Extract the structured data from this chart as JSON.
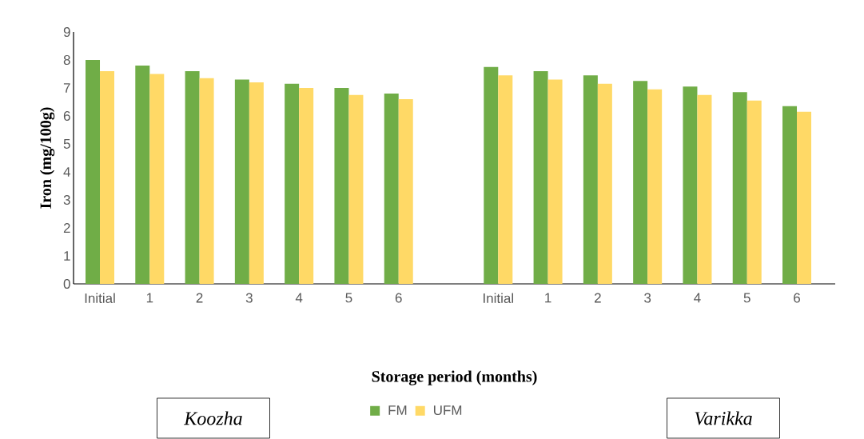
{
  "chart_data": {
    "type": "bar",
    "xlabel": "Storage period (months)",
    "ylabel": "Iron (mg/100g)",
    "categories": [
      "Initial",
      "1",
      "2",
      "3",
      "4",
      "5",
      "6",
      null,
      "Initial",
      "1",
      "2",
      "3",
      "4",
      "5",
      "6"
    ],
    "series": [
      {
        "name": "FM",
        "color": "#70ad47",
        "values": [
          8.0,
          7.8,
          7.6,
          7.3,
          7.15,
          7.0,
          6.8,
          null,
          7.75,
          7.6,
          7.45,
          7.25,
          7.05,
          6.85,
          6.35
        ]
      },
      {
        "name": "UFM",
        "color": "#ffd966",
        "values": [
          7.6,
          7.5,
          7.35,
          7.2,
          7.0,
          6.75,
          6.6,
          null,
          7.45,
          7.3,
          7.15,
          6.95,
          6.75,
          6.55,
          6.15
        ]
      }
    ],
    "ylim": [
      0,
      9
    ],
    "yticks": [
      0,
      1,
      2,
      3,
      4,
      5,
      6,
      7,
      8,
      9
    ],
    "grid": false,
    "legend": "bottom",
    "annotations": [
      "*Koozha*",
      "*Varikka*"
    ]
  }
}
